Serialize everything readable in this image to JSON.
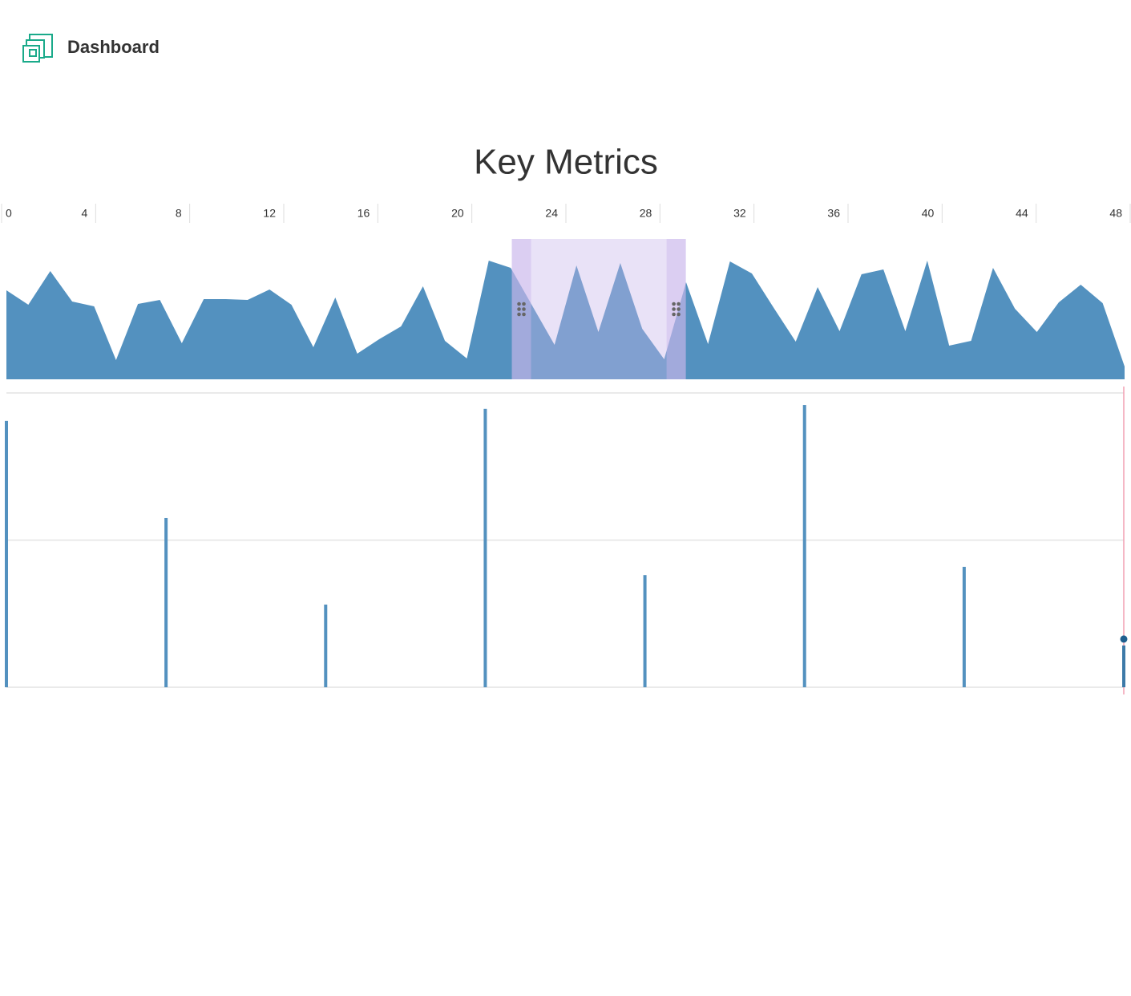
{
  "header": {
    "title": "Dashboard"
  },
  "chart_data": [
    {
      "type": "area",
      "title": "Key Metrics",
      "color": "#5391bf",
      "xlim": [
        0,
        48
      ],
      "xticks": [
        0,
        4,
        8,
        12,
        16,
        20,
        24,
        28,
        32,
        36,
        40,
        44,
        48
      ],
      "ylim": [
        0,
        175
      ],
      "values": [
        111,
        93,
        135,
        97,
        91,
        24,
        94,
        99,
        45,
        100,
        100,
        99,
        112,
        93,
        40,
        102,
        32,
        50,
        66,
        116,
        48,
        26,
        148,
        139,
        91,
        43,
        142,
        59,
        145,
        63,
        25,
        121,
        44,
        147,
        132,
        89,
        47,
        115,
        60,
        131,
        137,
        60,
        148,
        42,
        48,
        139,
        88,
        59,
        96,
        118,
        95,
        16
      ],
      "brush": [
        21.7,
        29.1
      ],
      "brush_color": "#c9b6ec"
    },
    {
      "type": "bar",
      "color": "#5391bf",
      "ylim": [
        0,
        100
      ],
      "yticks": [
        0,
        50,
        100
      ],
      "grid": true,
      "values": [
        90.5,
        57.5,
        28.1,
        94.6,
        38.1,
        95.9,
        40.9,
        14.2
      ],
      "highlight": 7,
      "cursor_color": "#f2a0b4"
    }
  ]
}
